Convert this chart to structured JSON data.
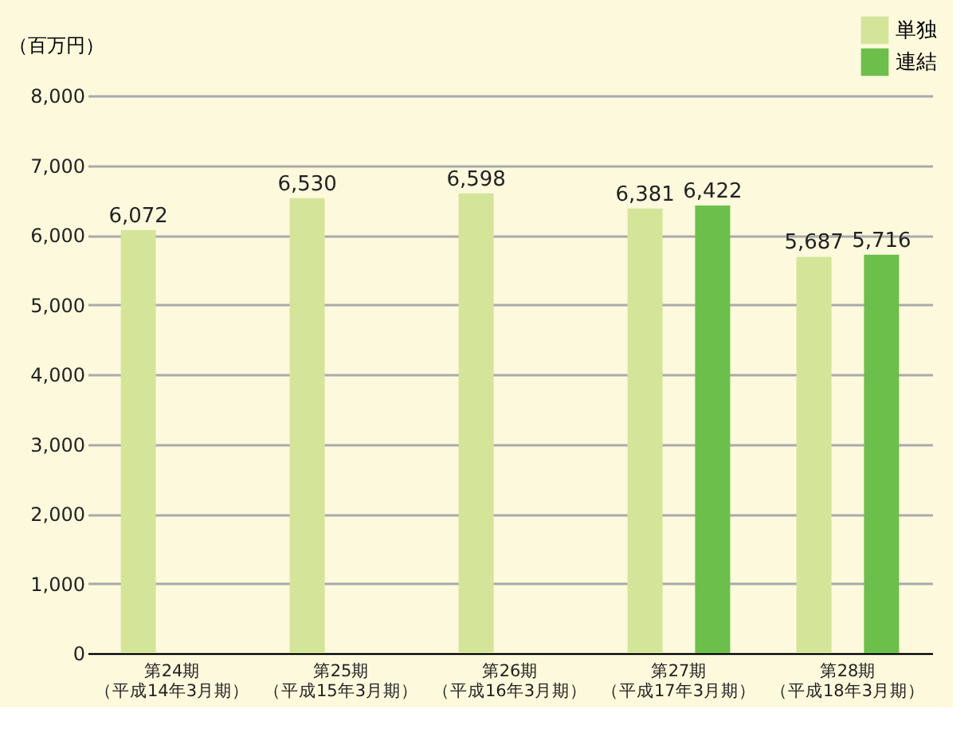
{
  "chart_data": {
    "type": "bar",
    "ylabel": "（百万円）",
    "categories": [
      "第24期（平成14年3月期）",
      "第25期（平成15年3月期）",
      "第26期（平成16年3月期）",
      "第27期（平成17年3月期）",
      "第28期（平成18年3月期）"
    ],
    "series": [
      {
        "name": "単独",
        "color": "#d4e59a",
        "values": [
          6072,
          6530,
          6598,
          6381,
          5687
        ],
        "value_labels": [
          "6,072",
          "6,530",
          "6,598",
          "6,381",
          "5,687"
        ]
      },
      {
        "name": "連結",
        "color": "#6cbf4a",
        "values": [
          null,
          null,
          null,
          6422,
          5716
        ],
        "value_labels": [
          null,
          null,
          null,
          "6,422",
          "5,716"
        ]
      }
    ],
    "ylim": [
      0,
      8000
    ],
    "yticks": [
      {
        "value": 0,
        "label": "0"
      },
      {
        "value": 1000,
        "label": "1,000"
      },
      {
        "value": 2000,
        "label": "2,000"
      },
      {
        "value": 3000,
        "label": "3,000"
      },
      {
        "value": 4000,
        "label": "4,000"
      },
      {
        "value": 5000,
        "label": "5,000"
      },
      {
        "value": 6000,
        "label": "6,000"
      },
      {
        "value": 7000,
        "label": "7,000"
      },
      {
        "value": 8000,
        "label": "8,000"
      }
    ],
    "grid": "y",
    "legend": "top right"
  }
}
